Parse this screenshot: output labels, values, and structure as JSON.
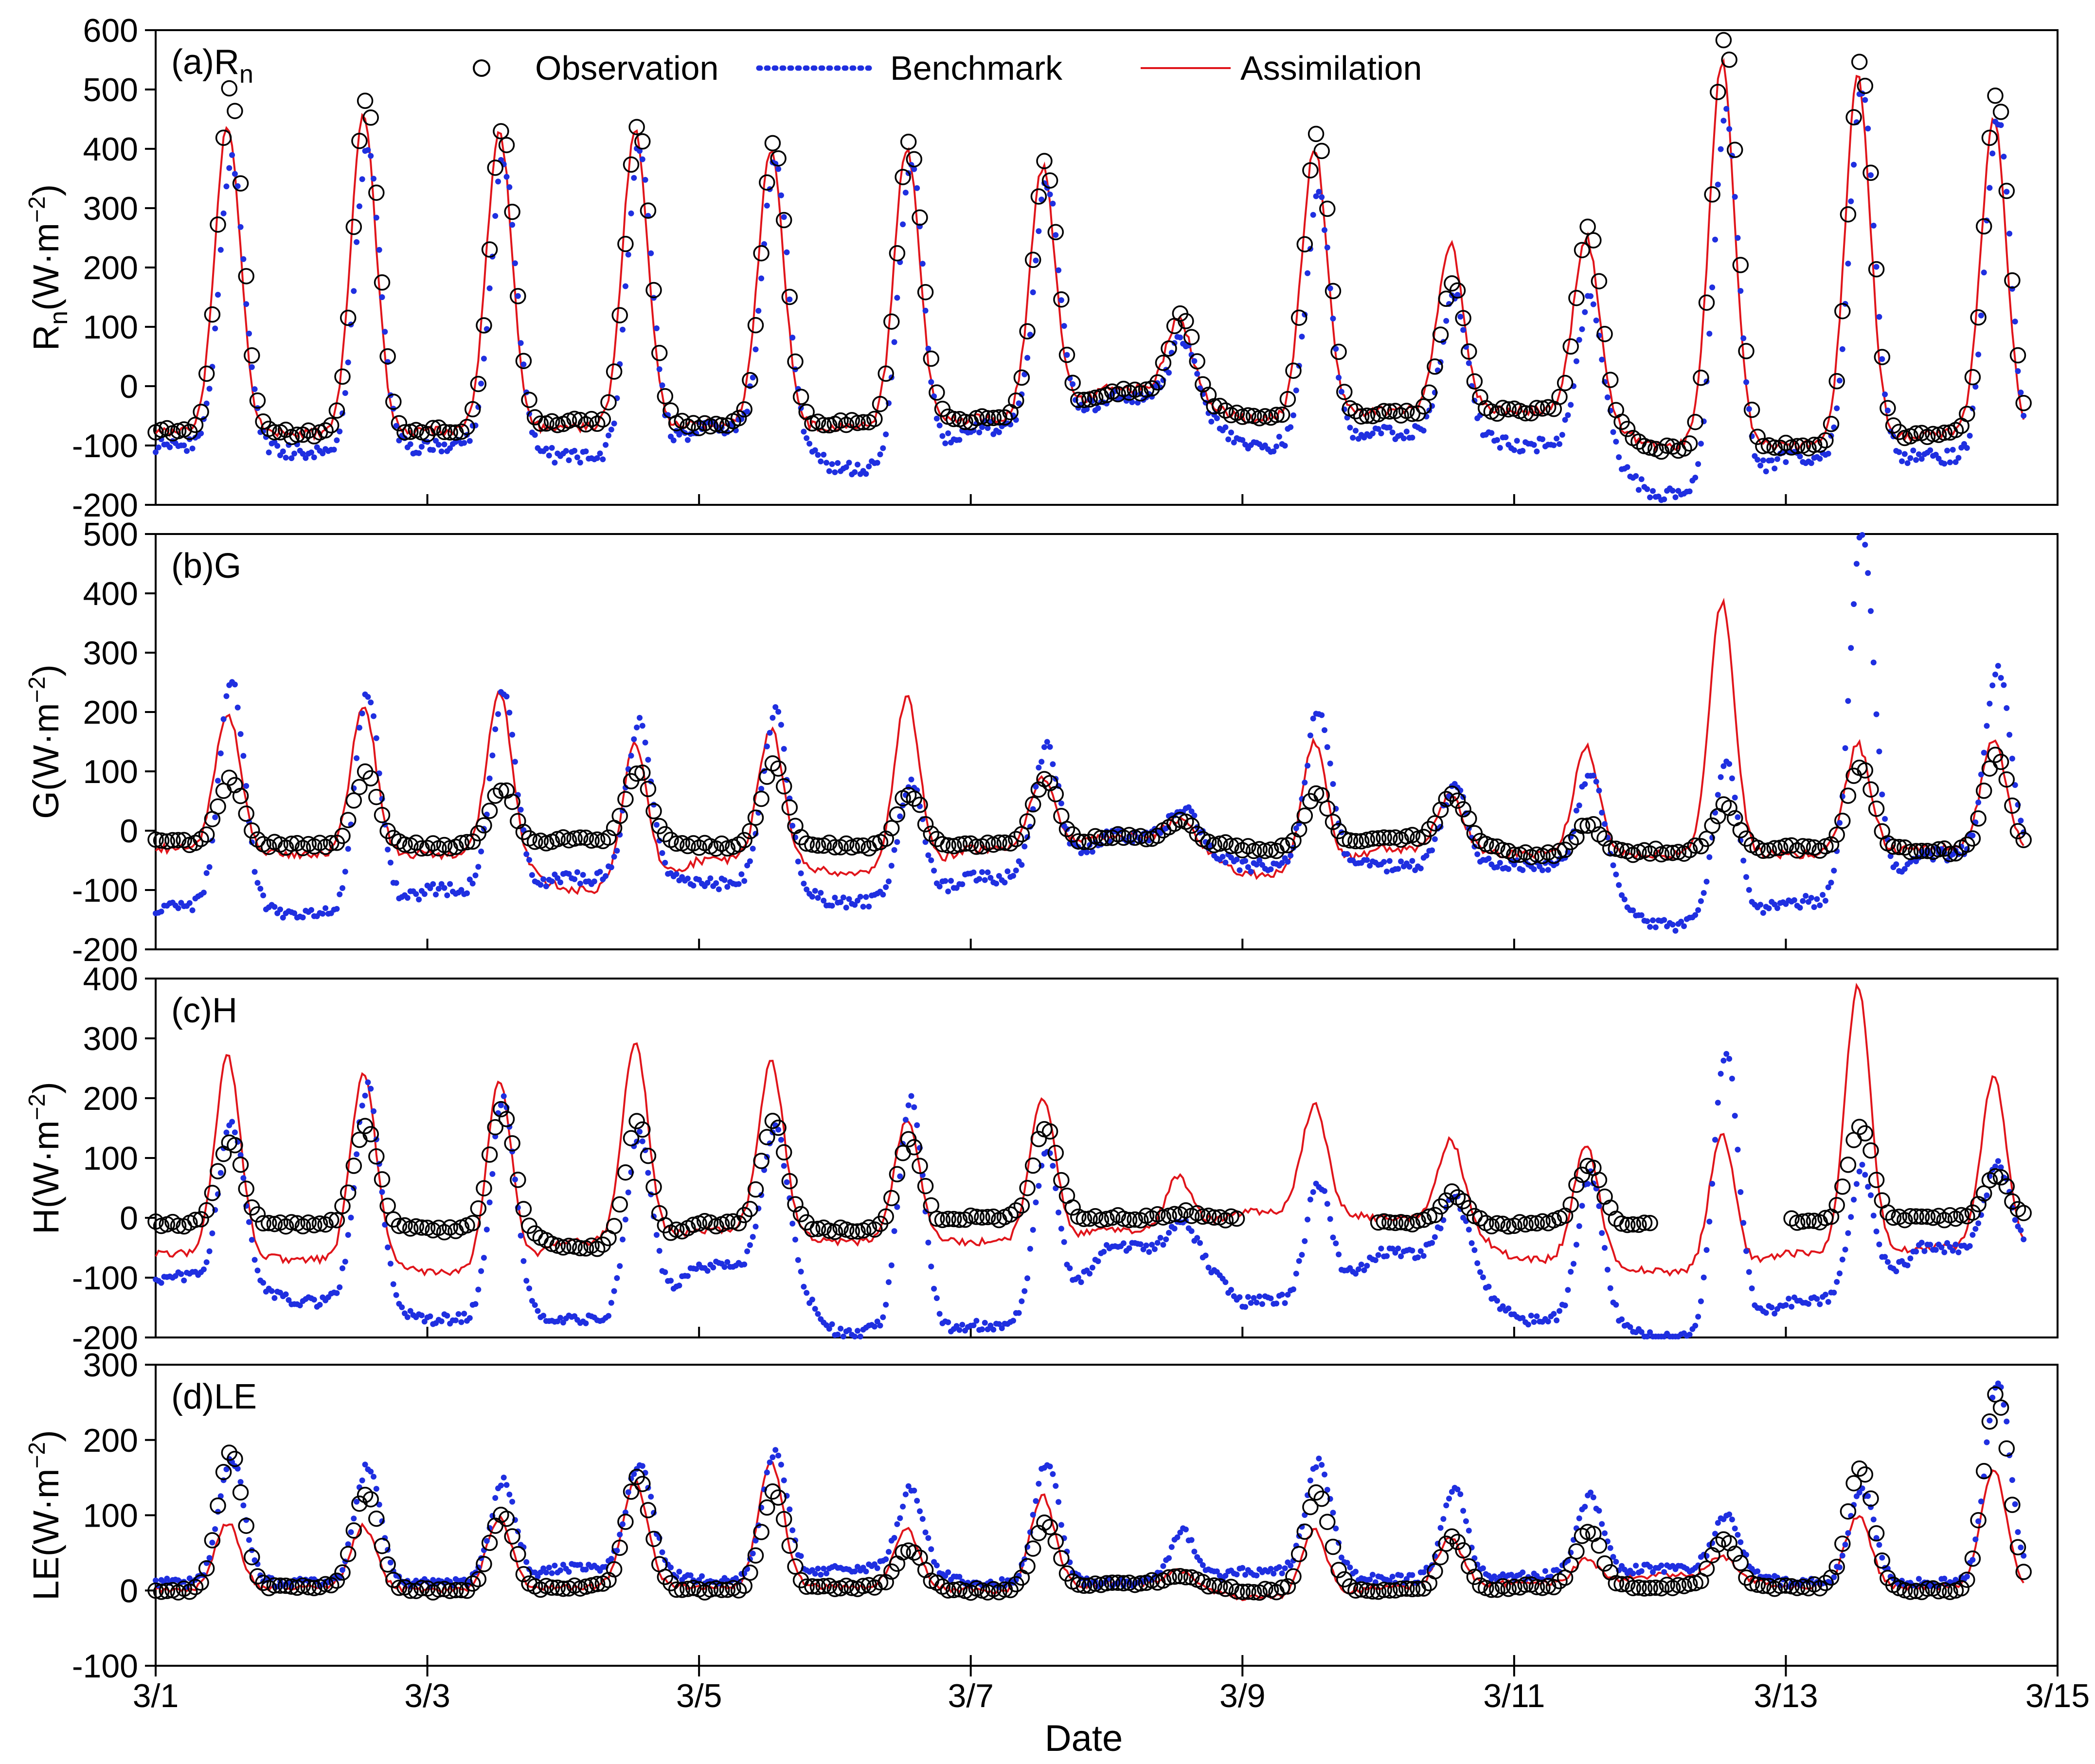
{
  "figure": {
    "xlabel": "Date",
    "xticks": [
      "3/1",
      "3/3",
      "3/5",
      "3/7",
      "3/9",
      "3/11",
      "3/13",
      "3/15"
    ],
    "legend": {
      "observation": "Observation",
      "benchmark": "Benchmark",
      "assimilation": "Assimilation"
    },
    "colors": {
      "observation": "#000000",
      "benchmark": "#1f2fe0",
      "assimilation": "#e0151b"
    }
  },
  "chart_data": [
    {
      "type": "scatter+line",
      "panel_label": "(a)R",
      "panel_label_sub": "n",
      "ylabel_main": "R",
      "ylabel_sub": "n",
      "ylabel_rest": "(W·m",
      "ylabel_exp": "−2",
      "ylabel_close": ")",
      "ylim": [
        -200,
        600
      ],
      "yticks": [
        "600",
        "500",
        "400",
        "300",
        "200",
        "100",
        "0",
        "-100",
        "-200"
      ],
      "ytick_values": [
        600,
        500,
        400,
        300,
        200,
        100,
        0,
        -100,
        -200
      ],
      "xlim_days": [
        0,
        14
      ],
      "series": {
        "observation": {
          "peaks": [
            500,
            485,
            435,
            440,
            410,
            415,
            380,
            120,
            430,
            175,
            270,
            590,
            545,
            495
          ],
          "night": [
            -75,
            -80,
            -75,
            -60,
            -65,
            -60,
            -55,
            -10,
            -55,
            -45,
            -40,
            -105,
            -100,
            -80
          ]
        },
        "benchmark": {
          "peaks": [
            380,
            400,
            380,
            400,
            380,
            380,
            340,
            80,
            320,
            150,
            150,
            460,
            500,
            450
          ],
          "night": [
            -100,
            -110,
            -100,
            -120,
            -70,
            -140,
            -70,
            -20,
            -100,
            -80,
            -100,
            -180,
            -120,
            -120
          ]
        },
        "assimilation": {
          "peaks": [
            440,
            460,
            430,
            430,
            400,
            400,
            370,
            110,
            400,
            240,
            250,
            545,
            520,
            450
          ],
          "night": [
            -75,
            -80,
            -75,
            -70,
            -65,
            -70,
            -55,
            -5,
            -55,
            -40,
            -40,
            -100,
            -100,
            -80
          ]
        }
      }
    },
    {
      "type": "scatter+line",
      "panel_label": "(b)G",
      "ylabel_main": "G",
      "ylabel_rest": "(W·m",
      "ylabel_exp": "−2",
      "ylabel_close": ")",
      "ylim": [
        -200,
        500
      ],
      "yticks": [
        "500",
        "400",
        "300",
        "200",
        "100",
        "0",
        "-100",
        "-200"
      ],
      "ytick_values": [
        500,
        400,
        300,
        200,
        100,
        0,
        -100,
        -200
      ],
      "xlim_days": [
        0,
        14
      ],
      "series": {
        "observation": {
          "peaks": [
            85,
            95,
            70,
            100,
            110,
            65,
            90,
            15,
            65,
            60,
            10,
            40,
            110,
            130
          ],
          "night": [
            -20,
            -25,
            -25,
            -15,
            -25,
            -25,
            -25,
            -10,
            -30,
            -10,
            -40,
            -35,
            -30,
            -35
          ]
        },
        "benchmark": {
          "peaks": [
            255,
            235,
            230,
            185,
            200,
            80,
            140,
            40,
            205,
            80,
            100,
            120,
            500,
            275
          ],
          "night": [
            -130,
            -140,
            -100,
            -80,
            -90,
            -120,
            -80,
            -10,
            -60,
            -60,
            -60,
            -160,
            -120,
            -40
          ]
        },
        "assimilation": {
          "peaks": [
            200,
            210,
            230,
            150,
            170,
            225,
            90,
            20,
            150,
            60,
            140,
            385,
            145,
            150
          ],
          "night": [
            -30,
            -40,
            -40,
            -100,
            -50,
            -70,
            -30,
            -10,
            -75,
            -30,
            -40,
            -40,
            -40,
            -30
          ]
        }
      }
    },
    {
      "type": "scatter+line",
      "panel_label": "(c)H",
      "ylabel_main": "H",
      "ylabel_rest": "(W·m",
      "ylabel_exp": "−2",
      "ylabel_close": ")",
      "ylim": [
        -200,
        400
      ],
      "yticks": [
        "400",
        "300",
        "200",
        "100",
        "0",
        "-100",
        "-200"
      ],
      "ytick_values": [
        400,
        300,
        200,
        100,
        0,
        -100,
        -200
      ],
      "xlim_days": [
        0,
        14
      ],
      "series": {
        "observation": {
          "peaks": [
            130,
            150,
            180,
            160,
            160,
            130,
            150,
            10,
            100,
            40,
            90,
            null,
            155,
            70
          ],
          "night": [
            -10,
            -10,
            -20,
            -50,
            -10,
            -20,
            0,
            0,
            null,
            -10,
            -10,
            null,
            -5,
            0
          ]
        },
        "benchmark": {
          "peaks": [
            160,
            220,
            200,
            140,
            150,
            200,
            110,
            -10,
            60,
            30,
            70,
            280,
            80,
            90
          ],
          "night": [
            -100,
            -140,
            -170,
            -170,
            -80,
            -190,
            -180,
            -50,
            -140,
            -60,
            -170,
            -200,
            -140,
            -50
          ]
        },
        "assimilation": {
          "peaks": [
            270,
            240,
            225,
            295,
            260,
            160,
            200,
            70,
            190,
            130,
            120,
            140,
            385,
            235
          ],
          "night": [
            -60,
            -70,
            -90,
            -40,
            -20,
            -40,
            -40,
            -20,
            10,
            0,
            -70,
            -90,
            -60,
            -50
          ]
        }
      }
    },
    {
      "type": "scatter+line",
      "panel_label": "(d)LE",
      "ylabel_main": "LE",
      "ylabel_rest": "(W·m",
      "ylabel_exp": "−2",
      "ylabel_close": ")",
      "ylim": [
        -100,
        300
      ],
      "yticks": [
        "300",
        "200",
        "100",
        "0",
        "-100"
      ],
      "ytick_values": [
        300,
        200,
        100,
        0,
        -100
      ],
      "xlim_days": [
        0,
        14
      ],
      "series": {
        "observation": {
          "peaks": [
            185,
            130,
            100,
            150,
            130,
            55,
            90,
            20,
            130,
            70,
            80,
            70,
            165,
            260
          ],
          "night": [
            0,
            5,
            0,
            5,
            0,
            5,
            0,
            10,
            0,
            0,
            5,
            5,
            5,
            0
          ]
        },
        "benchmark": {
          "peaks": [
            175,
            165,
            145,
            170,
            185,
            135,
            170,
            80,
            170,
            135,
            125,
            100,
            135,
            280
          ],
          "night": [
            10,
            10,
            10,
            30,
            15,
            30,
            10,
            10,
            25,
            15,
            20,
            30,
            10,
            10
          ]
        },
        "assimilation": {
          "peaks": [
            90,
            85,
            95,
            145,
            170,
            80,
            125,
            25,
            80,
            70,
            40,
            45,
            100,
            160
          ],
          "night": [
            0,
            5,
            0,
            5,
            5,
            5,
            0,
            10,
            -10,
            5,
            10,
            20,
            5,
            5
          ]
        }
      }
    }
  ]
}
